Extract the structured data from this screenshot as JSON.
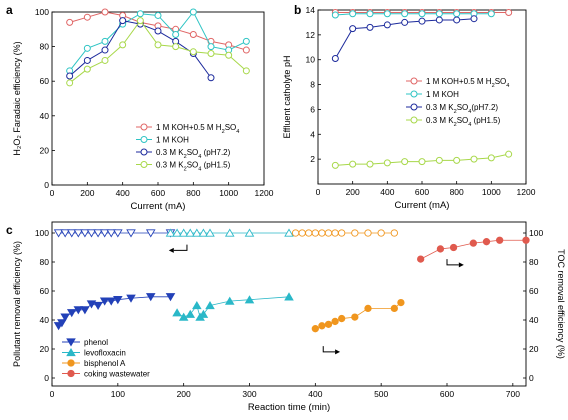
{
  "chart_data": [
    {
      "panel": "a",
      "type": "line",
      "xlabel": "Current (mA)",
      "ylabel": "H₂O₂ Faradaic efficiency (%)",
      "xlim": [
        0,
        1200
      ],
      "ylim": [
        0,
        100
      ],
      "xticks": [
        0,
        200,
        400,
        600,
        800,
        1000,
        1200
      ],
      "yticks": [
        0,
        20,
        40,
        60,
        80,
        100
      ],
      "legend_position": "bottom-right",
      "colors": {
        "r": "#e06666",
        "c": "#2ec4c4",
        "b": "#1c2a9c",
        "y": "#a8d84a"
      },
      "series": [
        {
          "name_main": "1 M KOH+0.5 M H",
          "name_sub": "2",
          "name_tail": "SO",
          "name_sub2": "4",
          "color": "r",
          "x": [
            100,
            200,
            300,
            400,
            500,
            600,
            700,
            800,
            900,
            1000,
            1100
          ],
          "y": [
            94,
            97,
            100,
            98,
            94,
            92,
            90,
            87,
            83,
            81,
            78
          ]
        },
        {
          "name_main": "1 M KOH",
          "color": "c",
          "x": [
            100,
            200,
            300,
            400,
            500,
            600,
            700,
            800,
            900,
            1000,
            1100
          ],
          "y": [
            66,
            79,
            83,
            93,
            99,
            98,
            87,
            100,
            80,
            78,
            83
          ]
        },
        {
          "name_main": "0.3 M K",
          "name_sub": "2",
          "name_tail": "SO",
          "name_sub2": "4",
          "name_end": " (pH7.2)",
          "color": "b",
          "x": [
            100,
            200,
            300,
            400,
            500,
            600,
            700,
            800,
            900
          ],
          "y": [
            63,
            72,
            78,
            95,
            93,
            89,
            83,
            76,
            62
          ]
        },
        {
          "name_main": "0.3 M K",
          "name_sub": "2",
          "name_tail": "SO",
          "name_sub2": "4",
          "name_end": " (pH1.5)",
          "color": "y",
          "x": [
            100,
            200,
            300,
            400,
            500,
            600,
            700,
            800,
            900,
            1000,
            1100
          ],
          "y": [
            59,
            67,
            72,
            81,
            95,
            81,
            80,
            77,
            76,
            75,
            66
          ]
        }
      ]
    },
    {
      "panel": "b",
      "type": "line",
      "xlabel": "Current (mA)",
      "ylabel": "Effluent catholyte pH",
      "xlim": [
        0,
        1200
      ],
      "ylim": [
        0,
        14
      ],
      "xticks": [
        0,
        200,
        400,
        600,
        800,
        1000,
        1200
      ],
      "yticks": [
        2,
        4,
        6,
        8,
        10,
        12,
        14
      ],
      "legend_position": "center-right",
      "series": [
        {
          "name_main": "1 M KOH+0.5 M H",
          "name_sub": "2",
          "name_tail": "SO",
          "name_sub2": "4",
          "color": "r",
          "x": [
            100,
            200,
            300,
            400,
            500,
            600,
            700,
            800,
            900,
            1000,
            1100
          ],
          "y": [
            13.8,
            13.8,
            13.8,
            13.8,
            13.8,
            13.8,
            13.8,
            13.8,
            13.8,
            13.8,
            13.8
          ]
        },
        {
          "name_main": "1 M KOH",
          "color": "c",
          "x": [
            100,
            200,
            300,
            400,
            500,
            600,
            700,
            800,
            900,
            1000
          ],
          "y": [
            13.6,
            13.7,
            13.7,
            13.7,
            13.7,
            13.7,
            13.7,
            13.7,
            13.7,
            13.7
          ]
        },
        {
          "name_main": "0.3 M K",
          "name_sub": "2",
          "name_tail": "SO",
          "name_sub2": "4",
          "name_end": "(pH7.2)",
          "color": "b",
          "x": [
            100,
            200,
            300,
            400,
            500,
            600,
            700,
            800,
            900
          ],
          "y": [
            10.1,
            12.5,
            12.6,
            12.8,
            13.0,
            13.1,
            13.2,
            13.2,
            13.3
          ]
        },
        {
          "name_main": "0.3 M K",
          "name_sub": "2",
          "name_tail": "SO",
          "name_sub2": "4",
          "name_end": " (pH1.5)",
          "color": "y",
          "x": [
            100,
            200,
            300,
            400,
            500,
            600,
            700,
            800,
            900,
            1000,
            1100
          ],
          "y": [
            1.5,
            1.6,
            1.6,
            1.7,
            1.8,
            1.8,
            1.9,
            1.9,
            2.0,
            2.1,
            2.4
          ]
        }
      ]
    },
    {
      "panel": "c",
      "type": "scatter",
      "xlabel": "Reaction time (min)",
      "ylabel": "Pollutant removal efficiency (%)",
      "y2label": "TOC removal efficiency (%)",
      "xlim": [
        0,
        720
      ],
      "ylim": [
        0,
        100
      ],
      "y2lim": [
        0,
        100
      ],
      "xticks": [
        0,
        100,
        200,
        300,
        400,
        500,
        600,
        700
      ],
      "yticks": [
        0,
        20,
        40,
        60,
        80,
        100
      ],
      "y2ticks": [
        0,
        20,
        40,
        60,
        80,
        100
      ],
      "legend_position": "bottom-left",
      "series": [
        {
          "name": "phenol",
          "marker": "tri-down",
          "color": "#2341b8",
          "removal": {
            "x": [
              10,
              20,
              30,
              40,
              50,
              60,
              70,
              80,
              90,
              100,
              120,
              150,
              180
            ],
            "y": [
              100,
              100,
              100,
              100,
              100,
              100,
              100,
              100,
              100,
              100,
              100,
              100,
              100
            ]
          },
          "toc": {
            "x": [
              10,
              15,
              20,
              30,
              40,
              50,
              60,
              70,
              80,
              90,
              100,
              120,
              150,
              180
            ],
            "y": [
              36,
              38,
              42,
              45,
              47,
              47,
              51,
              50,
              53,
              53,
              54,
              55,
              56,
              56
            ]
          }
        },
        {
          "name": "levofloxacin",
          "marker": "tri-up",
          "color": "#2ab8c8",
          "removal": {
            "x": [
              180,
              190,
              200,
              210,
              220,
              230,
              240,
              270,
              300,
              360
            ],
            "y": [
              100,
              100,
              100,
              100,
              100,
              100,
              100,
              100,
              100,
              100
            ]
          },
          "toc": {
            "x": [
              190,
              200,
              210,
              220,
              225,
              230,
              240,
              270,
              300,
              360
            ],
            "y": [
              45,
              42,
              44,
              50,
              42,
              44,
              50,
              53,
              54,
              56
            ]
          }
        },
        {
          "name": "bisphenol A",
          "marker": "circle",
          "color": "#f0961e",
          "removal": {
            "x": [
              370,
              380,
              390,
              400,
              410,
              420,
              430,
              440,
              460,
              480,
              500,
              520
            ],
            "y": [
              100,
              100,
              100,
              100,
              100,
              100,
              100,
              100,
              100,
              100,
              100,
              100
            ]
          },
          "toc": {
            "x": [
              400,
              410,
              420,
              430,
              440,
              460,
              480,
              520,
              530
            ],
            "y": [
              34,
              36,
              37,
              39,
              41,
              42,
              48,
              48,
              52
            ]
          }
        },
        {
          "name": "coking wastewater",
          "marker": "circle",
          "color": "#e05a4e",
          "toc": {
            "x": [
              560,
              590,
              610,
              640,
              660,
              680,
              720
            ],
            "y": [
              82,
              89,
              90,
              93,
              94,
              95,
              95
            ]
          }
        }
      ]
    }
  ],
  "labels": {
    "a": "a",
    "b": "b",
    "c": "c"
  }
}
